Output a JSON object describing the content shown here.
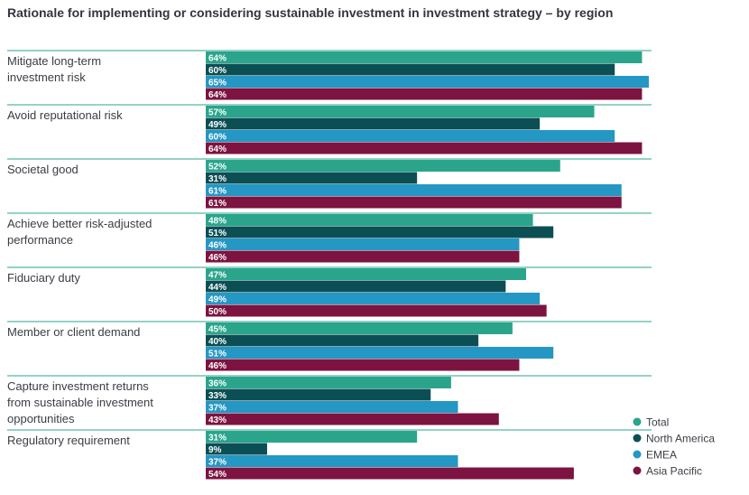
{
  "chart_data": {
    "type": "bar",
    "orientation": "horizontal",
    "title": "Rationale for implementing or considering sustainable investment in investment strategy – by region",
    "xlabel": "",
    "ylabel": "",
    "xlim": [
      0,
      70
    ],
    "grid": false,
    "legend_position": "bottom-right",
    "categories": [
      [
        "Mitigate long-term",
        "investment risk"
      ],
      [
        "Avoid reputational risk"
      ],
      [
        "Societal good"
      ],
      [
        "Achieve better risk-adjusted",
        "performance"
      ],
      [
        "Fiduciary duty"
      ],
      [
        "Member or client demand"
      ],
      [
        "Capture investment returns",
        "from sustainable investment",
        "opportunities"
      ],
      [
        "Regulatory requirement"
      ]
    ],
    "series": [
      {
        "name": "Total",
        "color": "#2aa58c",
        "values": [
          64,
          57,
          52,
          48,
          47,
          45,
          36,
          31
        ]
      },
      {
        "name": "North America",
        "color": "#0b4f55",
        "values": [
          60,
          49,
          31,
          51,
          44,
          40,
          33,
          9
        ]
      },
      {
        "name": "EMEA",
        "color": "#2497c4",
        "values": [
          65,
          60,
          61,
          46,
          49,
          51,
          37,
          37
        ]
      },
      {
        "name": "Asia Pacific",
        "color": "#7d1340",
        "values": [
          64,
          64,
          61,
          46,
          50,
          46,
          43,
          54
        ]
      }
    ],
    "value_suffix": "%"
  }
}
